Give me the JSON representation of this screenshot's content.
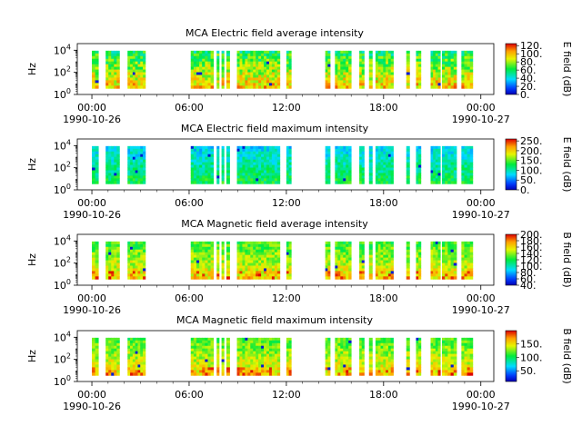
{
  "chart_data": [
    {
      "type": "heatmap",
      "title": "MCA  Electric field average intensity",
      "ylabel": "Hz",
      "y_scale": "log",
      "y_tick_labels": [
        [
          "10",
          "0"
        ],
        [
          "10",
          "2"
        ],
        [
          "10",
          "4"
        ]
      ],
      "y_ticks": [
        1,
        100,
        10000
      ],
      "x_ticks": [
        {
          "time": "00:00",
          "date": "1990-10-26"
        },
        {
          "time": "06:00",
          "date": ""
        },
        {
          "time": "12:00",
          "date": ""
        },
        {
          "time": "18:00",
          "date": ""
        },
        {
          "time": "00:00",
          "date": "1990-10-27"
        }
      ],
      "colorbar": {
        "label": "E field (dB)",
        "min": 0,
        "max": 125,
        "ticks": [
          0,
          20,
          40,
          60,
          80,
          100,
          120
        ],
        "tick_labels": [
          "0.",
          "20.",
          "40.",
          "60.",
          "80.",
          "100.",
          "120."
        ]
      },
      "coverage_hours": [
        [
          0.0,
          0.4
        ],
        [
          0.85,
          1.7
        ],
        [
          2.2,
          3.3
        ],
        [
          6.1,
          7.5
        ],
        [
          7.7,
          7.85
        ],
        [
          8.0,
          8.15
        ],
        [
          8.3,
          8.5
        ],
        [
          8.95,
          11.6
        ],
        [
          12.0,
          12.3
        ],
        [
          14.4,
          14.7
        ],
        [
          15.0,
          16.0
        ],
        [
          16.5,
          16.8
        ],
        [
          17.1,
          17.3
        ],
        [
          17.5,
          18.6
        ],
        [
          19.4,
          19.6
        ],
        [
          20.0,
          20.3
        ],
        [
          20.9,
          21.5
        ],
        [
          21.6,
          22.5
        ],
        [
          22.8,
          23.5
        ]
      ],
      "intensity_range": [
        30,
        115
      ]
    },
    {
      "type": "heatmap",
      "title": "MCA  Electric field maximum intensity",
      "ylabel": "Hz",
      "y_scale": "log",
      "y_tick_labels": [
        [
          "10",
          "0"
        ],
        [
          "10",
          "2"
        ],
        [
          "10",
          "4"
        ]
      ],
      "y_ticks": [
        1,
        100,
        10000
      ],
      "x_ticks": [
        {
          "time": "00:00",
          "date": "1990-10-26"
        },
        {
          "time": "06:00",
          "date": ""
        },
        {
          "time": "12:00",
          "date": ""
        },
        {
          "time": "18:00",
          "date": ""
        },
        {
          "time": "00:00",
          "date": "1990-10-27"
        }
      ],
      "colorbar": {
        "label": "E field (dB)",
        "min": 0,
        "max": 260,
        "ticks": [
          0,
          50,
          100,
          150,
          200,
          250
        ],
        "tick_labels": [
          "0.",
          "50.",
          "100.",
          "150.",
          "200.",
          "250."
        ]
      },
      "coverage_hours": [
        [
          0.0,
          0.4
        ],
        [
          0.85,
          1.7
        ],
        [
          2.2,
          3.3
        ],
        [
          6.1,
          7.5
        ],
        [
          7.7,
          7.85
        ],
        [
          8.0,
          8.15
        ],
        [
          8.3,
          8.5
        ],
        [
          8.95,
          11.6
        ],
        [
          12.0,
          12.3
        ],
        [
          14.4,
          14.7
        ],
        [
          15.0,
          16.0
        ],
        [
          16.5,
          16.8
        ],
        [
          17.1,
          17.3
        ],
        [
          17.5,
          18.6
        ],
        [
          19.4,
          19.6
        ],
        [
          20.0,
          20.3
        ],
        [
          20.9,
          21.5
        ],
        [
          21.6,
          22.5
        ],
        [
          22.8,
          23.5
        ]
      ],
      "intensity_range": [
        40,
        150
      ]
    },
    {
      "type": "heatmap",
      "title": "MCA  Magnetic field average intensity",
      "ylabel": "Hz",
      "y_scale": "log",
      "y_tick_labels": [
        [
          "10",
          "0"
        ],
        [
          "10",
          "2"
        ],
        [
          "10",
          "4"
        ]
      ],
      "y_ticks": [
        1,
        100,
        10000
      ],
      "x_ticks": [
        {
          "time": "00:00",
          "date": "1990-10-26"
        },
        {
          "time": "06:00",
          "date": ""
        },
        {
          "time": "12:00",
          "date": ""
        },
        {
          "time": "18:00",
          "date": ""
        },
        {
          "time": "00:00",
          "date": "1990-10-27"
        }
      ],
      "colorbar": {
        "label": "B field (dB)",
        "min": 40,
        "max": 200,
        "ticks": [
          40,
          60,
          80,
          100,
          120,
          140,
          160,
          180,
          200
        ],
        "tick_labels": [
          "40.",
          "60.",
          "80.",
          "100.",
          "120.",
          "140.",
          "160.",
          "180.",
          "200."
        ]
      },
      "coverage_hours": [
        [
          0.0,
          0.4
        ],
        [
          0.85,
          1.7
        ],
        [
          2.2,
          3.3
        ],
        [
          6.1,
          7.5
        ],
        [
          7.7,
          7.85
        ],
        [
          8.0,
          8.15
        ],
        [
          8.3,
          8.5
        ],
        [
          8.95,
          11.6
        ],
        [
          12.0,
          12.3
        ],
        [
          14.4,
          14.7
        ],
        [
          15.0,
          16.0
        ],
        [
          16.5,
          16.8
        ],
        [
          17.1,
          17.3
        ],
        [
          17.5,
          18.6
        ],
        [
          19.4,
          19.6
        ],
        [
          20.0,
          20.3
        ],
        [
          20.9,
          21.5
        ],
        [
          21.6,
          22.5
        ],
        [
          22.8,
          23.5
        ]
      ],
      "intensity_range": [
        100,
        175
      ]
    },
    {
      "type": "heatmap",
      "title": "MCA  Magnetic field maximum intensity",
      "ylabel": "Hz",
      "y_scale": "log",
      "y_tick_labels": [
        [
          "10",
          "0"
        ],
        [
          "10",
          "2"
        ],
        [
          "10",
          "4"
        ]
      ],
      "y_ticks": [
        1,
        100,
        10000
      ],
      "x_ticks": [
        {
          "time": "00:00",
          "date": "1990-10-26"
        },
        {
          "time": "06:00",
          "date": ""
        },
        {
          "time": "12:00",
          "date": ""
        },
        {
          "time": "18:00",
          "date": ""
        },
        {
          "time": "00:00",
          "date": "1990-10-27"
        }
      ],
      "colorbar": {
        "label": "B field (dB)",
        "min": 10,
        "max": 200,
        "ticks": [
          50,
          100,
          150
        ],
        "tick_labels": [
          "50.",
          "100.",
          "150."
        ]
      },
      "coverage_hours": [
        [
          0.0,
          0.4
        ],
        [
          0.85,
          1.7
        ],
        [
          2.2,
          3.3
        ],
        [
          6.1,
          7.5
        ],
        [
          7.7,
          7.85
        ],
        [
          8.0,
          8.15
        ],
        [
          8.3,
          8.5
        ],
        [
          8.95,
          11.6
        ],
        [
          12.0,
          12.3
        ],
        [
          14.4,
          14.7
        ],
        [
          15.0,
          16.0
        ],
        [
          16.5,
          16.8
        ],
        [
          17.1,
          17.3
        ],
        [
          17.5,
          18.6
        ],
        [
          19.4,
          19.6
        ],
        [
          20.0,
          20.3
        ],
        [
          20.9,
          21.5
        ],
        [
          21.6,
          22.5
        ],
        [
          22.8,
          23.5
        ]
      ],
      "intensity_range": [
        85,
        170
      ]
    }
  ]
}
